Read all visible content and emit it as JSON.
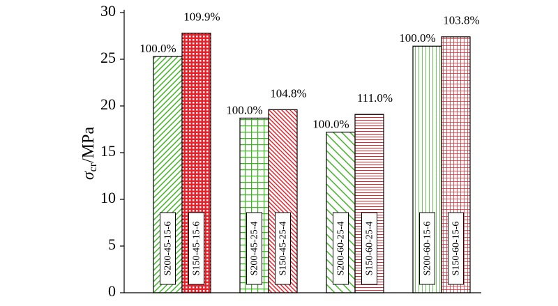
{
  "chart_data": {
    "type": "bar",
    "y_label": {
      "symbol": "σ",
      "subscript": "cr",
      "unit": "/MPa"
    },
    "categories": [
      "S200-45-15-6",
      "S150-45-15-6",
      "S200-45-25-4",
      "S150-45-25-4",
      "S200-60-25-4",
      "S150-60-25-4",
      "S200-60-15-6",
      "S150-60-15-6"
    ],
    "values": [
      25.3,
      27.8,
      18.7,
      19.6,
      17.2,
      19.1,
      26.4,
      27.4
    ],
    "annotations": [
      "100.0%",
      "109.9%",
      "100.0%",
      "104.8%",
      "100.0%",
      "111.0%",
      "100.0%",
      "103.8%"
    ],
    "colors": [
      "#3cb521",
      "#e8202a",
      "#3cb521",
      "#e8202a",
      "#3cb521",
      "#e8202a",
      "#3cb521",
      "#e8202a"
    ],
    "patterns": [
      "diag-right",
      "dots",
      "grid",
      "diag-left-dense",
      "diag-left",
      "horizontal",
      "vertical",
      "fine-grid"
    ],
    "ylim": [
      0,
      30
    ],
    "yticks": [
      0,
      5,
      10,
      15,
      20,
      25,
      30
    ]
  }
}
